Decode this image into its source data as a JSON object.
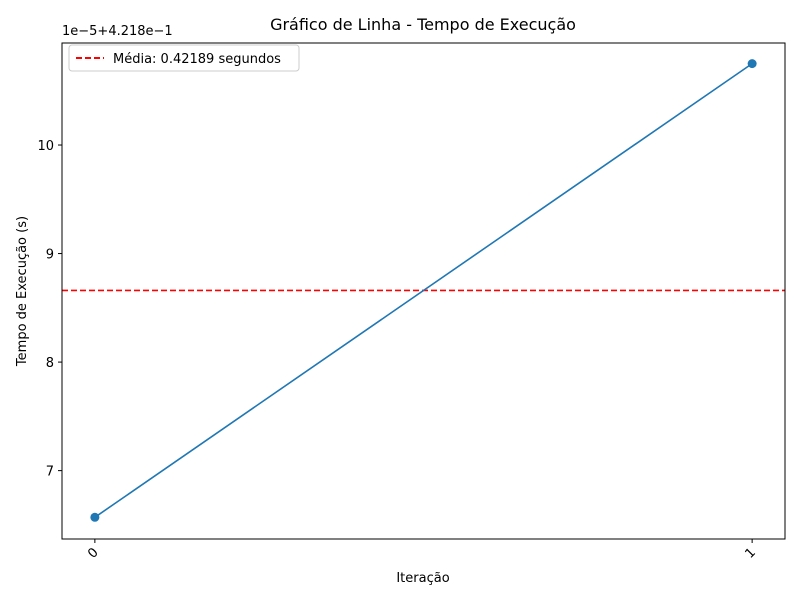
{
  "chart_data": {
    "type": "line",
    "title": "Gráfico de Linha - Tempo de Execução",
    "xlabel": "Iteração",
    "ylabel": "Tempo de Execução (s)",
    "offset_label": "1e−5+4.218e−1",
    "x_ticks": [
      "0",
      "1"
    ],
    "y_ticks": [
      "7",
      "8",
      "9",
      "10"
    ],
    "xlim": [
      -0.05,
      1.05
    ],
    "ylim": [
      6.37,
      10.94
    ],
    "series": [
      {
        "name": "",
        "x": [
          0,
          1
        ],
        "y": [
          6.57,
          10.75
        ],
        "color": "#1f77b4"
      }
    ],
    "reference_line": {
      "y": 8.66,
      "label": "Média: 0.42189 segundos",
      "color": "#ff0000",
      "style": "dashed"
    },
    "legend_position": "top-left",
    "grid": false
  }
}
